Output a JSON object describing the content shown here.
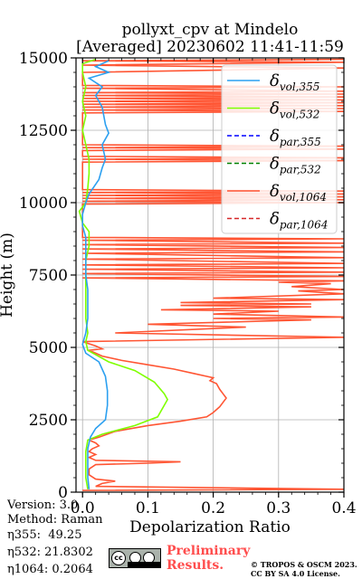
{
  "chart_data": {
    "type": "line",
    "title": "pollyxt_cpv at Mindelo",
    "subtitle": "[Averaged] 20230602 11:41-11:59",
    "xlabel": "Depolarization Ratio",
    "ylabel": "Height (m)",
    "xlim": [
      -0.01,
      0.4
    ],
    "ylim": [
      0,
      15000
    ],
    "xticks": [
      0.0,
      0.1,
      0.2,
      0.3,
      0.4
    ],
    "xtick_labels": [
      "0.0",
      "0.1",
      "0.2",
      "0.3",
      "0.4"
    ],
    "yticks": [
      0,
      2500,
      5000,
      7500,
      10000,
      12500,
      15000
    ],
    "ytick_labels": [
      "0",
      "2500",
      "5000",
      "7500",
      "10000",
      "12500",
      "15000"
    ],
    "grid": true,
    "legend_position": "top-right",
    "series": [
      {
        "name": "δvol,355",
        "label_main": "δ",
        "label_sub": "vol,355",
        "color": "#2ca0f0",
        "style": "solid",
        "points": [
          [
            0.04,
            14900
          ],
          [
            0.02,
            14700
          ],
          [
            0.04,
            14500
          ],
          [
            0.01,
            14300
          ],
          [
            0.03,
            14000
          ],
          [
            0.02,
            13700
          ],
          [
            0.03,
            13300
          ],
          [
            0.035,
            12700
          ],
          [
            0.04,
            12400
          ],
          [
            0.03,
            12000
          ],
          [
            0.035,
            11500
          ],
          [
            0.03,
            11200
          ],
          [
            0.025,
            10800
          ],
          [
            0.01,
            10300
          ],
          [
            0.005,
            10000
          ],
          [
            0.0,
            9600
          ],
          [
            0.0,
            9200
          ],
          [
            0.005,
            8800
          ],
          [
            0.005,
            8400
          ],
          [
            0.005,
            8000
          ],
          [
            0.005,
            7500
          ],
          [
            0.008,
            7000
          ],
          [
            0.008,
            6500
          ],
          [
            0.008,
            6000
          ],
          [
            0.005,
            5500
          ],
          [
            0.0,
            5100
          ],
          [
            0.005,
            4800
          ],
          [
            0.025,
            4500
          ],
          [
            0.035,
            4000
          ],
          [
            0.038,
            3500
          ],
          [
            0.038,
            3000
          ],
          [
            0.035,
            2500
          ],
          [
            0.02,
            2200
          ],
          [
            0.012,
            1900
          ],
          [
            0.008,
            1500
          ],
          [
            0.008,
            1000
          ],
          [
            0.008,
            500
          ],
          [
            0.01,
            100
          ]
        ]
      },
      {
        "name": "δvol,532",
        "label_main": "δ",
        "label_sub": "vol,532",
        "color": "#7fff00",
        "style": "solid",
        "points": [
          [
            0.02,
            14950
          ],
          [
            0.0,
            14800
          ],
          [
            0.0,
            14500
          ],
          [
            0.005,
            14000
          ],
          [
            0.0,
            13500
          ],
          [
            0.005,
            13000
          ],
          [
            0.0,
            12500
          ],
          [
            0.005,
            12000
          ],
          [
            0.01,
            11500
          ],
          [
            0.01,
            11000
          ],
          [
            0.008,
            10500
          ],
          [
            0.005,
            10000
          ],
          [
            -0.005,
            9700
          ],
          [
            0.0,
            9300
          ],
          [
            0.01,
            9000
          ],
          [
            0.01,
            8500
          ],
          [
            0.005,
            8000
          ],
          [
            0.005,
            7500
          ],
          [
            0.005,
            7000
          ],
          [
            0.005,
            6500
          ],
          [
            0.005,
            6000
          ],
          [
            0.008,
            5500
          ],
          [
            0.005,
            5200
          ],
          [
            0.008,
            4900
          ],
          [
            0.04,
            4500
          ],
          [
            0.08,
            4200
          ],
          [
            0.11,
            3800
          ],
          [
            0.125,
            3400
          ],
          [
            0.13,
            3200
          ],
          [
            0.125,
            3000
          ],
          [
            0.115,
            2600
          ],
          [
            0.08,
            2300
          ],
          [
            0.03,
            2000
          ],
          [
            0.008,
            1800
          ],
          [
            0.005,
            1400
          ],
          [
            0.005,
            1000
          ],
          [
            0.005,
            500
          ],
          [
            0.008,
            100
          ]
        ]
      },
      {
        "name": "δpar,355",
        "label_main": "δ",
        "label_sub": "par,355",
        "color": "#0000ff",
        "style": "dashed",
        "points": []
      },
      {
        "name": "δpar,532",
        "label_main": "δ",
        "label_sub": "par,532",
        "color": "#008000",
        "style": "dashed",
        "points": []
      },
      {
        "name": "δvol,1064",
        "label_main": "δ",
        "label_sub": "vol,1064",
        "color": "#ff5533",
        "style": "solid",
        "points": [
          [
            0.4,
            14950
          ],
          [
            0.0,
            14900
          ],
          [
            0.4,
            14850
          ],
          [
            0.0,
            14750
          ],
          [
            0.4,
            14650
          ],
          [
            0.0,
            14500
          ],
          [
            0.0,
            14050
          ],
          [
            0.4,
            14000
          ],
          [
            0.0,
            13950
          ],
          [
            0.4,
            13850
          ],
          [
            0.0,
            13800
          ],
          [
            0.4,
            13750
          ],
          [
            0.0,
            13700
          ],
          [
            0.4,
            13650
          ],
          [
            0.0,
            13600
          ],
          [
            0.4,
            13550
          ],
          [
            0.0,
            13500
          ],
          [
            0.4,
            13450
          ],
          [
            0.0,
            13400
          ],
          [
            0.4,
            13350
          ],
          [
            0.0,
            13300
          ],
          [
            0.4,
            13250
          ],
          [
            0.0,
            13200
          ],
          [
            0.4,
            13150
          ],
          [
            0.0,
            13100
          ],
          [
            0.0,
            12000
          ],
          [
            0.4,
            11950
          ],
          [
            0.0,
            11900
          ],
          [
            0.4,
            11850
          ],
          [
            0.0,
            11800
          ],
          [
            0.0,
            11600
          ],
          [
            0.4,
            11550
          ],
          [
            0.0,
            11500
          ],
          [
            0.4,
            11450
          ],
          [
            0.0,
            11400
          ],
          [
            0.0,
            10450
          ],
          [
            0.4,
            10400
          ],
          [
            0.0,
            10350
          ],
          [
            0.4,
            10300
          ],
          [
            0.0,
            10250
          ],
          [
            0.4,
            10200
          ],
          [
            0.0,
            10150
          ],
          [
            0.4,
            10100
          ],
          [
            0.0,
            10050
          ],
          [
            0.4,
            10000
          ],
          [
            0.0,
            9950
          ],
          [
            0.0,
            8800
          ],
          [
            0.4,
            8750
          ],
          [
            0.0,
            8700
          ],
          [
            0.4,
            8600
          ],
          [
            0.0,
            8550
          ],
          [
            0.4,
            8450
          ],
          [
            0.0,
            8400
          ],
          [
            0.4,
            8300
          ],
          [
            0.0,
            8250
          ],
          [
            0.4,
            8100
          ],
          [
            0.0,
            8050
          ],
          [
            0.4,
            7900
          ],
          [
            0.0,
            7850
          ],
          [
            0.4,
            7750
          ],
          [
            0.0,
            7700
          ],
          [
            0.4,
            7600
          ],
          [
            0.0,
            7550
          ],
          [
            0.4,
            7450
          ],
          [
            0.0,
            7400
          ],
          [
            0.2,
            7350
          ],
          [
            0.4,
            7300
          ],
          [
            0.3,
            7250
          ],
          [
            0.38,
            7200
          ],
          [
            0.32,
            7100
          ],
          [
            0.4,
            7000
          ],
          [
            0.33,
            6950
          ],
          [
            0.4,
            6850
          ],
          [
            0.2,
            6700
          ],
          [
            0.4,
            6650
          ],
          [
            0.15,
            6550
          ],
          [
            0.35,
            6500
          ],
          [
            0.15,
            6450
          ],
          [
            0.35,
            6400
          ],
          [
            0.12,
            6300
          ],
          [
            0.3,
            6250
          ],
          [
            0.2,
            6150
          ],
          [
            0.4,
            6050
          ],
          [
            0.2,
            6000
          ],
          [
            0.35,
            5950
          ],
          [
            0.1,
            5800
          ],
          [
            0.25,
            5700
          ],
          [
            0.05,
            5500
          ],
          [
            0.4,
            5350
          ],
          [
            0.0,
            5200
          ],
          [
            0.02,
            5050
          ],
          [
            0.03,
            4950
          ],
          [
            0.01,
            4900
          ],
          [
            0.02,
            4800
          ],
          [
            0.03,
            4700
          ],
          [
            0.06,
            4550
          ],
          [
            0.1,
            4400
          ],
          [
            0.14,
            4250
          ],
          [
            0.17,
            4100
          ],
          [
            0.19,
            4000
          ],
          [
            0.2,
            3950
          ],
          [
            0.195,
            3850
          ],
          [
            0.205,
            3750
          ],
          [
            0.21,
            3550
          ],
          [
            0.215,
            3400
          ],
          [
            0.22,
            3250
          ],
          [
            0.215,
            3100
          ],
          [
            0.21,
            2950
          ],
          [
            0.2,
            2750
          ],
          [
            0.19,
            2600
          ],
          [
            0.15,
            2450
          ],
          [
            0.1,
            2300
          ],
          [
            0.05,
            2100
          ],
          [
            0.025,
            1900
          ],
          [
            0.01,
            1800
          ],
          [
            0.02,
            1700
          ],
          [
            0.025,
            1600
          ],
          [
            0.015,
            1500
          ],
          [
            0.01,
            1400
          ],
          [
            0.02,
            1300
          ],
          [
            0.01,
            1200
          ],
          [
            0.02,
            1100
          ],
          [
            0.15,
            1050
          ],
          [
            0.1,
            1000
          ],
          [
            0.02,
            950
          ],
          [
            0.01,
            800
          ],
          [
            0.01,
            600
          ],
          [
            0.02,
            450
          ],
          [
            0.05,
            380
          ],
          [
            0.03,
            300
          ],
          [
            0.02,
            200
          ],
          [
            0.4,
            100
          ],
          [
            0.0,
            60
          ]
        ]
      },
      {
        "name": "δpar,1064",
        "label_main": "δ",
        "label_sub": "par,1064",
        "color": "#d62728",
        "style": "dashed",
        "points": []
      }
    ]
  },
  "footer": {
    "version": "Version: 3.0",
    "method": "Method: Raman",
    "eta355": "η355:  49.25",
    "eta532": "η532: 21.8302",
    "eta1064": "η1064: 0.2064"
  },
  "badges": {
    "preliminary": "Preliminary",
    "results": "Results.",
    "copyright_line1": "© TROPOS & OSCM 2023.",
    "copyright_line2": "CC BY SA 4.0 License.",
    "cc_icon": "cc-by-sa-icon",
    "cc_text": "cc"
  }
}
